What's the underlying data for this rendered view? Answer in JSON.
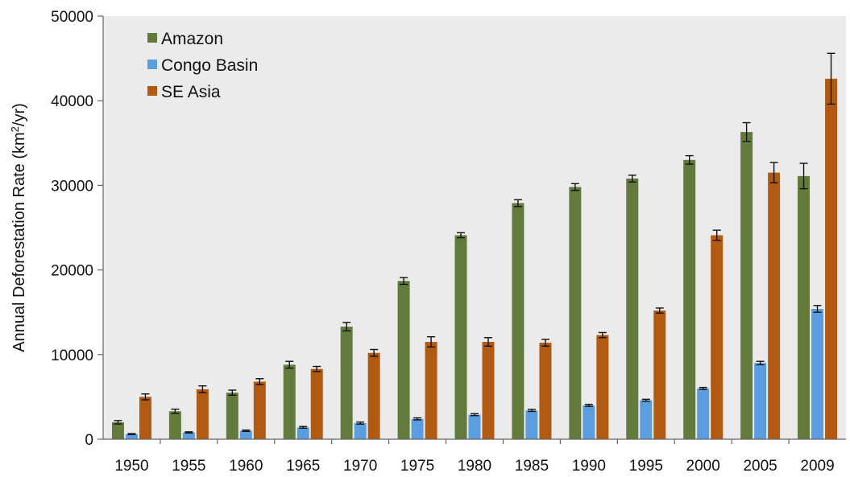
{
  "chart_data": {
    "type": "bar",
    "title": "",
    "xlabel": "",
    "ylabel_main": "Annual Deforestation Rate (km",
    "ylabel_sup": "2",
    "ylabel_tail": "/yr)",
    "ylim": [
      0,
      50000
    ],
    "yticks": [
      "0",
      "10000",
      "20000",
      "30000",
      "40000",
      "50000"
    ],
    "grid": false,
    "legend_position": "top-left",
    "categories": [
      "1950",
      "1955",
      "1960",
      "1965",
      "1970",
      "1975",
      "1980",
      "1985",
      "1990",
      "1995",
      "2000",
      "2005",
      "2009"
    ],
    "series": [
      {
        "name": "Amazon",
        "color": "#627b3c",
        "values": [
          2000,
          3300,
          5500,
          8800,
          13300,
          18700,
          24100,
          27900,
          29800,
          30800,
          33000,
          36300,
          31100
        ],
        "errors": [
          200,
          250,
          300,
          400,
          500,
          400,
          300,
          400,
          400,
          400,
          500,
          1100,
          1500
        ]
      },
      {
        "name": "Congo Basin",
        "color": "#5b9ee0",
        "values": [
          600,
          800,
          1000,
          1400,
          1900,
          2400,
          2900,
          3400,
          4000,
          4600,
          6000,
          9000,
          15400
        ],
        "errors": [
          60,
          70,
          80,
          100,
          120,
          120,
          120,
          120,
          120,
          120,
          120,
          200,
          400
        ]
      },
      {
        "name": "SE Asia",
        "color": "#b35a12",
        "values": [
          5000,
          5900,
          6800,
          8300,
          10200,
          11500,
          11500,
          11400,
          12300,
          15200,
          24100,
          31500,
          42600
        ],
        "errors": [
          350,
          400,
          350,
          300,
          400,
          600,
          500,
          400,
          300,
          300,
          600,
          1200,
          3000
        ]
      }
    ]
  }
}
